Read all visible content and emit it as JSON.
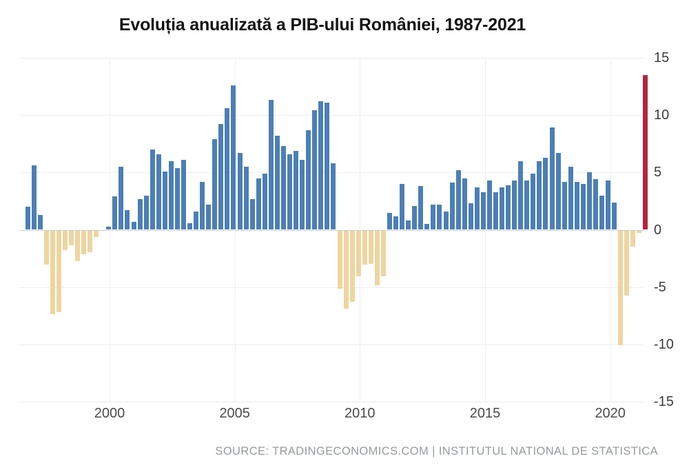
{
  "chart_data": {
    "type": "bar",
    "title": "Evoluția anualizată a PIB-ului României, 1987-2021",
    "source": "SOURCE: TRADINGECONOMICS.COM | INSTITUTUL NATIONAL DE STATISTICA",
    "ylim": [
      -15,
      15
    ],
    "yticks": [
      15,
      10,
      5,
      0,
      -5,
      -10,
      -15
    ],
    "xticklabels": [
      "2000",
      "2005",
      "2010",
      "2015",
      "2020"
    ],
    "grid": true,
    "legend": false,
    "bar_period": "quarterly",
    "highlight_last_bar": true,
    "values": [
      2.0,
      5.6,
      1.3,
      -3.0,
      -7.3,
      -7.1,
      -1.7,
      -1.3,
      -2.7,
      -2.1,
      -1.9,
      -0.6,
      0.0,
      0.3,
      2.9,
      5.5,
      1.7,
      0.7,
      2.7,
      3.0,
      7.0,
      6.6,
      5.1,
      6.0,
      5.4,
      6.1,
      0.6,
      1.6,
      4.2,
      2.2,
      7.9,
      9.2,
      10.6,
      12.6,
      6.7,
      5.5,
      2.7,
      4.5,
      4.9,
      11.3,
      8.2,
      7.3,
      6.6,
      6.9,
      6.1,
      8.7,
      10.4,
      11.2,
      11.1,
      5.8,
      -5.1,
      -6.8,
      -6.2,
      -4.0,
      -3.0,
      -2.9,
      -4.8,
      -4.0,
      1.5,
      1.2,
      4.0,
      0.8,
      2.1,
      3.8,
      0.5,
      2.2,
      2.2,
      1.6,
      4.1,
      5.2,
      4.5,
      2.3,
      3.7,
      3.3,
      4.3,
      3.3,
      3.7,
      3.9,
      4.3,
      6.0,
      4.3,
      4.9,
      6.0,
      6.3,
      8.9,
      6.7,
      4.2,
      5.5,
      4.2,
      4.0,
      5.0,
      4.4,
      3.0,
      4.3,
      2.4,
      -10.0,
      -5.7,
      -1.4,
      -0.2,
      13.5
    ],
    "colors": {
      "positive_bar": "#4c7fb5",
      "negative_bar": "#eed5a0",
      "highlight_bar": "#b3253f",
      "grid": "#ededed",
      "zero_line": "#cccccc",
      "axis_text": "#3d3d3d",
      "title_text": "#141414",
      "source_text": "#97999e"
    }
  }
}
